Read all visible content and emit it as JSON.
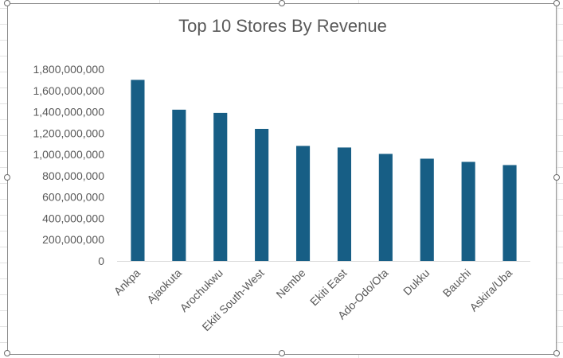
{
  "chart_data": {
    "type": "bar",
    "title": "Top 10 Stores By Revenue",
    "xlabel": "",
    "ylabel": "",
    "categories": [
      "Ankpa",
      "Ajaokuta",
      "Arochukwu",
      "Ekiti South-West",
      "Nembe",
      "Ekiti East",
      "Ado-Odo/Ota",
      "Dukku",
      "Bauchi",
      "Askira/Uba"
    ],
    "values": [
      1700000000,
      1420000000,
      1390000000,
      1240000000,
      1080000000,
      1065000000,
      1005000000,
      960000000,
      930000000,
      900000000
    ],
    "ylim": [
      0,
      1800000000
    ],
    "yticks": [
      "0",
      "200,000,000",
      "400,000,000",
      "600,000,000",
      "800,000,000",
      "1,000,000,000",
      "1,200,000,000",
      "1,400,000,000",
      "1,600,000,000",
      "1,800,000,000"
    ],
    "grid": false,
    "legend": "none",
    "bar_color": "#175e85",
    "axis_color": "#d9d9d9",
    "text_color": "#595959"
  }
}
